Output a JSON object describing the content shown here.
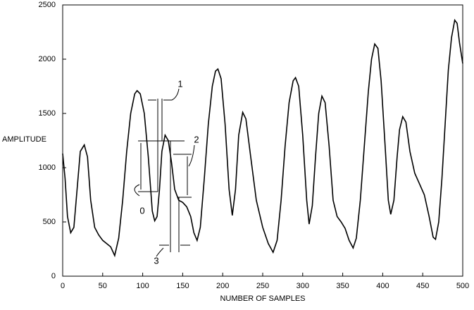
{
  "chart_data": {
    "type": "line",
    "xlabel": "NUMBER OF SAMPLES",
    "ylabel": "AMPLITUDE",
    "xlim": [
      0,
      500
    ],
    "xticks": [
      0,
      50,
      100,
      150,
      200,
      250,
      300,
      350,
      400,
      450,
      500
    ],
    "ylim": [
      0,
      2500
    ],
    "yticks": [
      0,
      500,
      1000,
      1500,
      2000,
      2500
    ],
    "grid": false,
    "annotations": [
      "1",
      "2",
      "0",
      "3"
    ],
    "series": [
      {
        "color": "#000000",
        "x": [
          0,
          3,
          6,
          10,
          14,
          18,
          22,
          27,
          31,
          35,
          40,
          45,
          50,
          55,
          60,
          65,
          70,
          75,
          80,
          85,
          90,
          93,
          97,
          102,
          107,
          112,
          115,
          118,
          121,
          124,
          128,
          132,
          136,
          140,
          145,
          150,
          155,
          160,
          164,
          168,
          172,
          177,
          182,
          187,
          191,
          194,
          198,
          203,
          208,
          212,
          216,
          220,
          225,
          229,
          235,
          242,
          250,
          257,
          263,
          268,
          273,
          278,
          283,
          288,
          291,
          295,
          300,
          305,
          308,
          312,
          316,
          320,
          324,
          328,
          333,
          338,
          343,
          348,
          353,
          358,
          363,
          367,
          372,
          377,
          382,
          386,
          390,
          394,
          398,
          403,
          407,
          410,
          414,
          418,
          421,
          425,
          429,
          434,
          440,
          446,
          452,
          458,
          463,
          466,
          470,
          474,
          478,
          482,
          486,
          490,
          493,
          496,
          500
        ],
        "values": [
          1130,
          900,
          550,
          400,
          450,
          800,
          1150,
          1210,
          1100,
          700,
          450,
          380,
          330,
          300,
          270,
          190,
          350,
          700,
          1150,
          1500,
          1680,
          1710,
          1680,
          1500,
          1100,
          600,
          510,
          550,
          800,
          1150,
          1300,
          1250,
          1050,
          800,
          700,
          680,
          640,
          550,
          400,
          330,
          450,
          900,
          1400,
          1750,
          1890,
          1910,
          1820,
          1400,
          800,
          560,
          800,
          1300,
          1510,
          1450,
          1100,
          700,
          450,
          300,
          220,
          330,
          700,
          1200,
          1600,
          1800,
          1830,
          1750,
          1300,
          700,
          480,
          650,
          1100,
          1500,
          1660,
          1600,
          1200,
          700,
          550,
          500,
          440,
          330,
          260,
          350,
          700,
          1200,
          1700,
          2000,
          2140,
          2100,
          1800,
          1200,
          700,
          570,
          700,
          1100,
          1350,
          1470,
          1420,
          1150,
          950,
          850,
          750,
          550,
          360,
          340,
          500,
          900,
          1400,
          1900,
          2200,
          2360,
          2330,
          2150,
          1960
        ]
      }
    ]
  }
}
